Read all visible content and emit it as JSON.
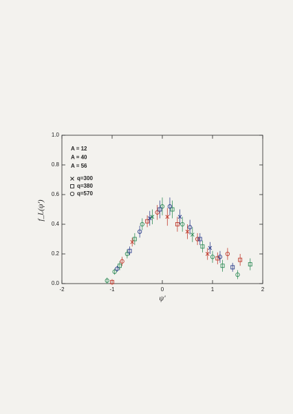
{
  "chart_data": {
    "type": "scatter",
    "xlabel": "ψ'",
    "ylabel": "f_L(ψ')",
    "xlim": [
      -2,
      2
    ],
    "ylim": [
      0,
      1
    ],
    "xticks": [
      -2,
      -1,
      0,
      1,
      2
    ],
    "yticks": [
      {
        "value": 0,
        "label": "0.0"
      },
      0.2,
      0.4,
      0.6,
      0.8,
      {
        "value": 1,
        "label": "1.0"
      }
    ],
    "markers": [
      {
        "name": "q=300",
        "symbol": "x"
      },
      {
        "name": "q=380",
        "symbol": "square"
      },
      {
        "name": "q=570",
        "symbol": "circle"
      }
    ],
    "series": [
      {
        "name": "A = 12",
        "color": "#2e8b57",
        "x": [
          -1.1,
          -0.95,
          -0.85,
          -0.7,
          -0.55,
          -0.4,
          -0.2,
          0,
          0.2,
          0.4,
          0.6,
          0.8,
          1.0,
          1.2,
          1.5,
          1.75
        ],
        "values": [
          0.02,
          0.08,
          0.12,
          0.2,
          0.3,
          0.4,
          0.45,
          0.52,
          0.5,
          0.4,
          0.33,
          0.25,
          0.18,
          0.12,
          0.06,
          0.13
        ],
        "errors": [
          0.02,
          0.02,
          0.03,
          0.03,
          0.04,
          0.04,
          0.05,
          0.06,
          0.06,
          0.05,
          0.05,
          0.04,
          0.04,
          0.04,
          0.03,
          0.04
        ],
        "symbols": [
          "circle",
          "circle",
          "square",
          "circle",
          "square",
          "circle",
          "x",
          "circle",
          "square",
          "circle",
          "x",
          "square",
          "circle",
          "square",
          "circle",
          "square"
        ]
      },
      {
        "name": "A = 40",
        "color": "#c0392b",
        "x": [
          -1.0,
          -0.8,
          -0.6,
          -0.3,
          -0.1,
          0.1,
          0.3,
          0.5,
          0.7,
          0.9,
          1.1,
          1.3,
          1.55
        ],
        "values": [
          0.01,
          0.15,
          0.28,
          0.42,
          0.48,
          0.45,
          0.4,
          0.35,
          0.3,
          0.2,
          0.17,
          0.2,
          0.16
        ],
        "errors": [
          0.02,
          0.03,
          0.03,
          0.04,
          0.05,
          0.06,
          0.05,
          0.05,
          0.04,
          0.04,
          0.04,
          0.04,
          0.04
        ],
        "symbols": [
          "square",
          "circle",
          "x",
          "square",
          "circle",
          "x",
          "square",
          "x",
          "circle",
          "x",
          "square",
          "circle",
          "square"
        ]
      },
      {
        "name": "A = 56",
        "color": "#2c3e8c",
        "x": [
          -0.9,
          -0.65,
          -0.45,
          -0.25,
          -0.05,
          0.15,
          0.35,
          0.55,
          0.75,
          0.95,
          1.15,
          1.4
        ],
        "values": [
          0.1,
          0.22,
          0.35,
          0.44,
          0.5,
          0.52,
          0.45,
          0.38,
          0.3,
          0.24,
          0.18,
          0.11
        ],
        "errors": [
          0.02,
          0.03,
          0.04,
          0.05,
          0.06,
          0.06,
          0.05,
          0.05,
          0.04,
          0.04,
          0.04,
          0.03
        ],
        "symbols": [
          "circle",
          "square",
          "circle",
          "x",
          "square",
          "circle",
          "x",
          "circle",
          "square",
          "x",
          "circle",
          "square"
        ]
      }
    ]
  }
}
